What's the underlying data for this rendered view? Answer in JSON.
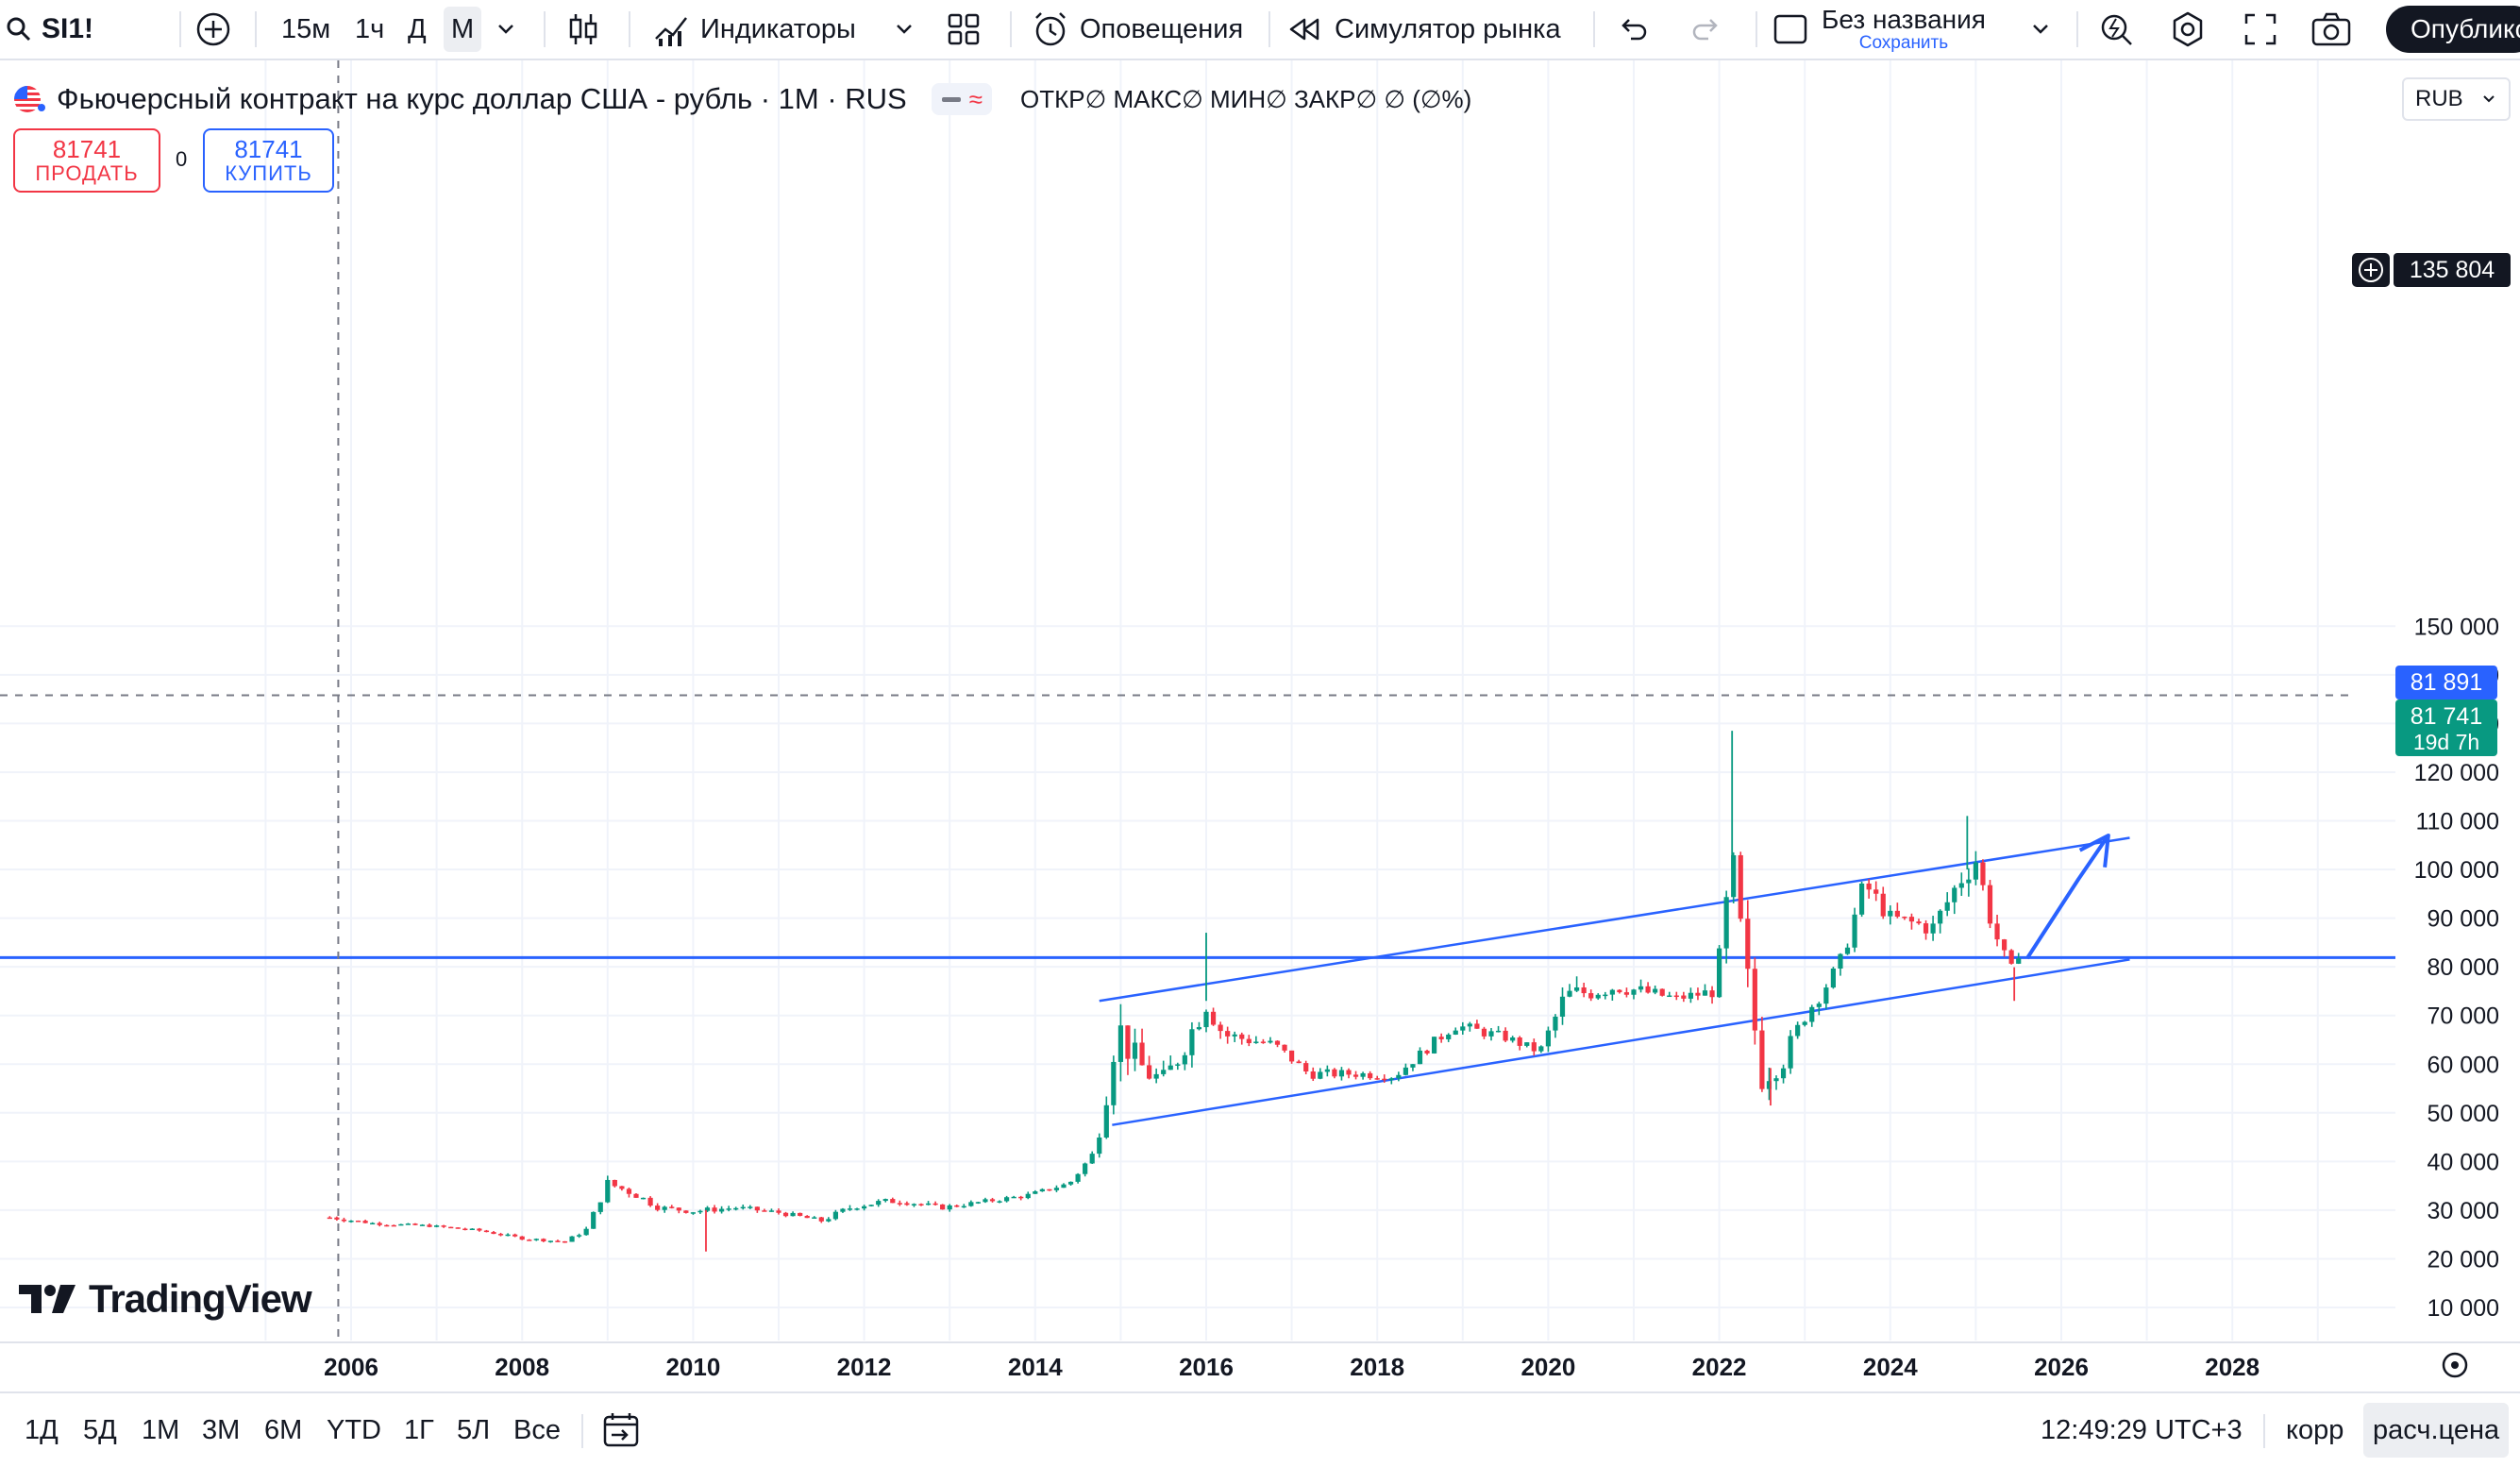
{
  "toolbar": {
    "symbol": "SI1!",
    "timeframes": [
      "15м",
      "1ч",
      "Д",
      "М"
    ],
    "active_timeframe": "М",
    "indicators_label": "Индикаторы",
    "alerts_label": "Оповещения",
    "replay_label": "Симулятор рынка",
    "layout_name": "Без названия",
    "layout_save": "Сохранить",
    "publish_label": "Опублико"
  },
  "legend": {
    "title": "Фьючерсный контракт на курс доллар США - рубль · 1М · RUS",
    "ohlc": "ОТКР∅ МАКС∅ МИН∅ ЗАКР∅ ∅ (∅%)",
    "pill_symbol": "≈"
  },
  "trade": {
    "sell_price": "81741",
    "sell_label": "ПРОДАТЬ",
    "spread": "0",
    "buy_price": "81741",
    "buy_label": "КУПИТЬ"
  },
  "currency": "RUB",
  "brand": "TradingView",
  "price_labels": {
    "crosshair": "135 804",
    "blue_line": "81 891",
    "last_price": "81 741",
    "countdown": "19d 7h"
  },
  "bottom": {
    "ranges": [
      "1Д",
      "5Д",
      "1М",
      "3М",
      "6М",
      "YTD",
      "1Г",
      "5Л",
      "Все"
    ],
    "time": "12:49:29 UTC+3",
    "adj_label": "корр",
    "calc_label": "расч.цена"
  },
  "colors": {
    "up": "#089981",
    "down": "#f23645",
    "line": "#2962ff",
    "grid": "#f0f3fa"
  },
  "chart_data": {
    "type": "candlestick",
    "symbol": "SI1!",
    "interval": "1M",
    "ylim": [
      5000,
      155000
    ],
    "xlim": [
      2004.9,
      2029.3
    ],
    "y_ticks": [
      "10 000",
      "20 000",
      "30 000",
      "40 000",
      "50 000",
      "60 000",
      "70 000",
      "80 000",
      "90 000",
      "100 000",
      "110 000",
      "120 000",
      "130 000",
      "140 000",
      "150 000"
    ],
    "y_tick_values": [
      10000,
      20000,
      30000,
      40000,
      50000,
      60000,
      70000,
      80000,
      90000,
      100000,
      110000,
      120000,
      130000,
      140000,
      150000
    ],
    "x_ticks": [
      "2006",
      "2008",
      "2010",
      "2012",
      "2014",
      "2016",
      "2018",
      "2020",
      "2022",
      "2024",
      "2026",
      "2028"
    ],
    "x_tick_values": [
      2006,
      2008,
      2010,
      2012,
      2014,
      2016,
      2018,
      2020,
      2022,
      2024,
      2026,
      2028
    ],
    "grid": true,
    "anchors": [
      [
        2005.75,
        28500,
        700
      ],
      [
        2006.3,
        27200,
        400
      ],
      [
        2006.9,
        26800,
        400
      ],
      [
        2007.5,
        25800,
        400
      ],
      [
        2008.0,
        24200,
        400
      ],
      [
        2008.5,
        23500,
        400
      ],
      [
        2008.75,
        26000,
        700
      ],
      [
        2009.0,
        35500,
        1500
      ],
      [
        2009.3,
        33500,
        1300
      ],
      [
        2009.6,
        30500,
        900
      ],
      [
        2010.0,
        29800,
        900
      ],
      [
        2010.5,
        30500,
        800
      ],
      [
        2011.0,
        29500,
        700
      ],
      [
        2011.5,
        27800,
        700
      ],
      [
        2011.9,
        31000,
        1200
      ],
      [
        2012.4,
        32000,
        1000
      ],
      [
        2012.9,
        30500,
        700
      ],
      [
        2013.3,
        31500,
        700
      ],
      [
        2013.9,
        33000,
        700
      ],
      [
        2014.4,
        35500,
        700
      ],
      [
        2014.7,
        42000,
        1500
      ],
      [
        2014.85,
        56000,
        4500
      ],
      [
        2014.95,
        68000,
        7000
      ],
      [
        2015.2,
        60000,
        4500
      ],
      [
        2015.5,
        56000,
        4500
      ],
      [
        2015.75,
        64000,
        3500
      ],
      [
        2016.0,
        73000,
        4500
      ],
      [
        2016.2,
        66000,
        2500
      ],
      [
        2016.8,
        64000,
        1500
      ],
      [
        2017.2,
        58000,
        1500
      ],
      [
        2017.8,
        58000,
        1300
      ],
      [
        2018.2,
        57500,
        1300
      ],
      [
        2018.5,
        62000,
        1500
      ],
      [
        2018.9,
        68000,
        1800
      ],
      [
        2019.5,
        65500,
        1500
      ],
      [
        2019.9,
        62500,
        1300
      ],
      [
        2020.2,
        74000,
        3500
      ],
      [
        2020.8,
        76000,
        2500
      ],
      [
        2021.5,
        73500,
        1500
      ],
      [
        2021.95,
        75000,
        2000
      ],
      [
        2022.15,
        100000,
        9000
      ],
      [
        2022.3,
        80000,
        7000
      ],
      [
        2022.5,
        58000,
        5500
      ],
      [
        2022.75,
        61000,
        3500
      ],
      [
        2023.0,
        70000,
        2500
      ],
      [
        2023.4,
        80000,
        2500
      ],
      [
        2023.7,
        97000,
        3500
      ],
      [
        2024.0,
        90000,
        2500
      ],
      [
        2024.5,
        88000,
        3000
      ],
      [
        2024.85,
        99000,
        4500
      ],
      [
        2025.0,
        102000,
        4000
      ],
      [
        2025.2,
        88000,
        3000
      ],
      [
        2025.4,
        79000,
        2000
      ],
      [
        2025.55,
        81741,
        2000
      ]
    ],
    "extra_wicks": [
      [
        2022.15,
        128500
      ],
      [
        2024.9,
        111000
      ],
      [
        2016.0,
        87000
      ],
      [
        2010.15,
        21500
      ],
      [
        2022.6,
        51500
      ],
      [
        2025.45,
        73000
      ]
    ],
    "channel_upper": [
      [
        2014.75,
        73000
      ],
      [
        2026.8,
        106500
      ]
    ],
    "channel_lower": [
      [
        2014.9,
        47500
      ],
      [
        2026.8,
        81500
      ]
    ],
    "forecast_arrow": [
      [
        2025.6,
        81741
      ],
      [
        2026.2,
        98000
      ],
      [
        2026.55,
        107000
      ]
    ],
    "horizontal_line": 81891,
    "crosshair": {
      "x": 2005.85,
      "y": 135804
    },
    "last_price": 81741
  }
}
